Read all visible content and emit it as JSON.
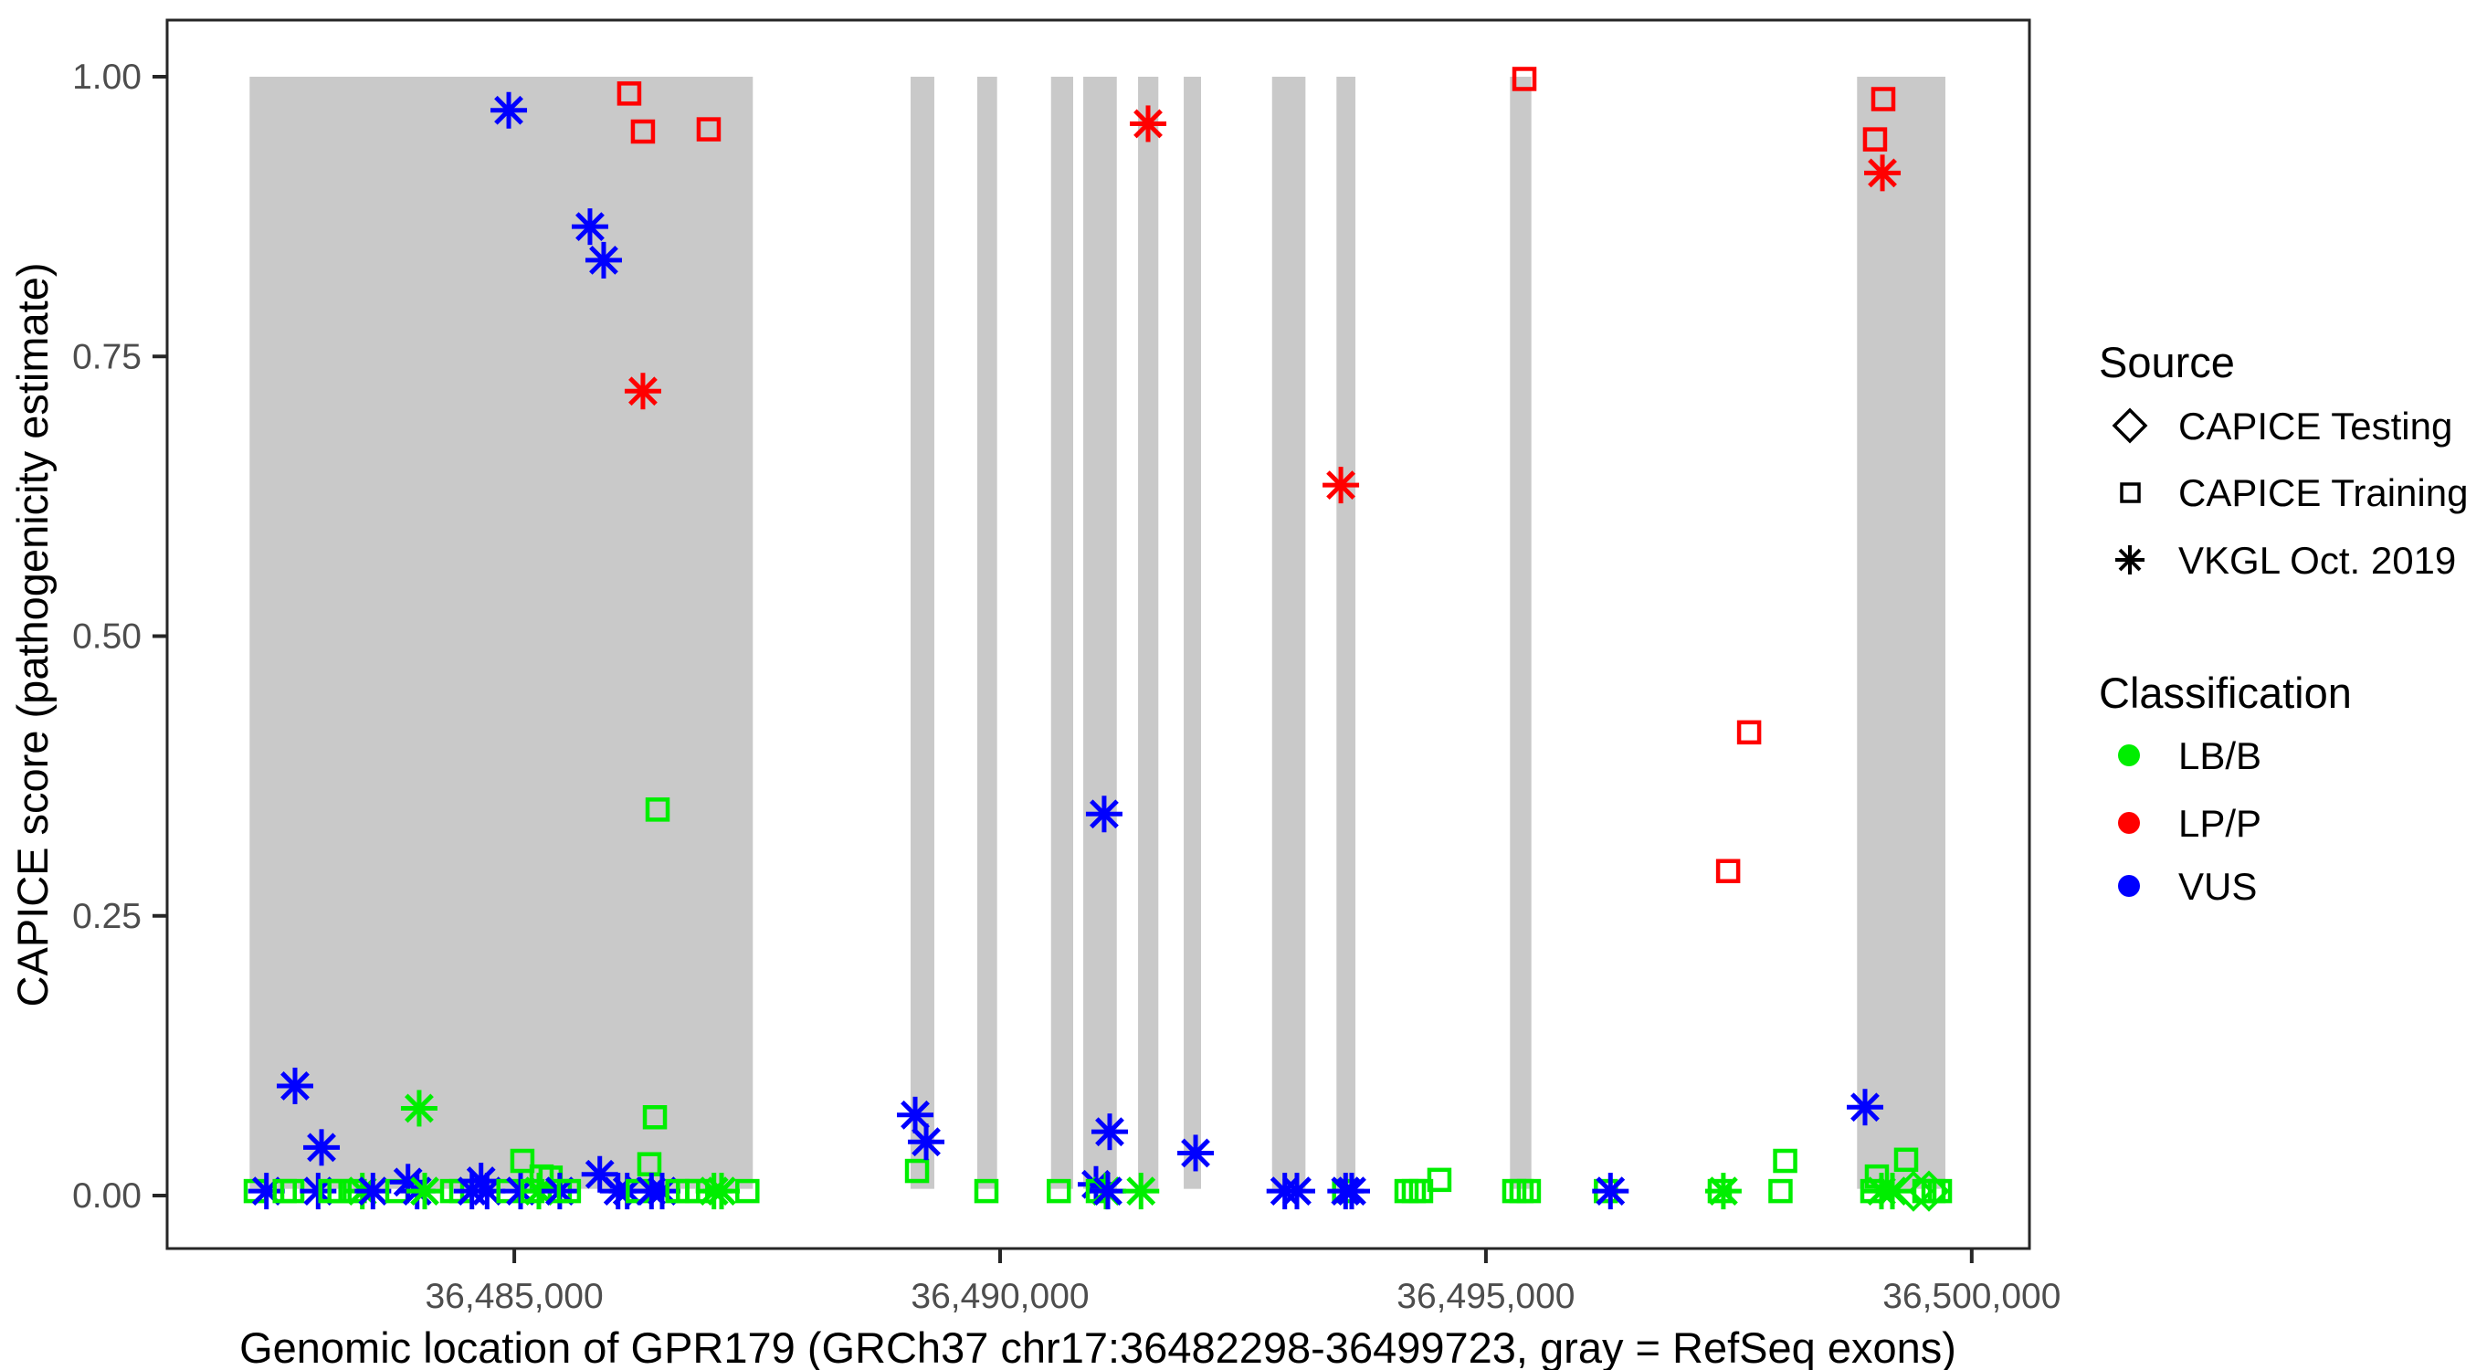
{
  "figure": {
    "x_axis": {
      "title": "Genomic location of GPR179 (GRCh37 chr17:36482298-36499723, gray = RefSeq exons)",
      "ticks": [
        {
          "value": 36485000,
          "label": "36,485,000"
        },
        {
          "value": 36490000,
          "label": "36,490,000"
        },
        {
          "value": 36495000,
          "label": "36,495,000"
        },
        {
          "value": 36500000,
          "label": "36,500,000"
        }
      ]
    },
    "y_axis": {
      "title": "CAPICE score (pathogenicity estimate)",
      "ticks": [
        {
          "value": 1.0,
          "label": "1.00"
        },
        {
          "value": 0.75,
          "label": "0.75"
        },
        {
          "value": 0.5,
          "label": "0.50"
        },
        {
          "value": 0.25,
          "label": "0.25"
        },
        {
          "value": 0.0,
          "label": "0.00"
        }
      ]
    }
  },
  "legend": {
    "source": {
      "title": "Source",
      "items": [
        {
          "label": "CAPICE Testing",
          "shape": "diamond",
          "key": "testing"
        },
        {
          "label": "CAPICE Training",
          "shape": "square",
          "key": "training"
        },
        {
          "label": "VKGL Oct. 2019",
          "shape": "asterisk",
          "key": "vkgl"
        }
      ]
    },
    "classification": {
      "title": "Classification",
      "items": [
        {
          "label": "LB/B",
          "color": "#00EE00"
        },
        {
          "label": "LP/P",
          "color": "#FF0000"
        },
        {
          "label": "VUS",
          "color": "#0000FF"
        }
      ]
    }
  },
  "colors": {
    "LB/B": "#00EE00",
    "LP/P": "#FF0000",
    "VUS": "#0000FF",
    "exon_band": "#C9C9C9",
    "tick_text": "#4D4D4D",
    "axis_line": "#262626",
    "background": "#FFFFFF"
  },
  "chart_data": {
    "type": "scatter",
    "title": "",
    "xlabel": "Genomic location of GPR179 (GRCh37 chr17:36482298-36499723, gray = RefSeq exons)",
    "ylabel": "CAPICE score (pathogenicity estimate)",
    "x_domain": [
      36481427,
      36500594
    ],
    "y_domain": [
      0,
      1
    ],
    "grid": false,
    "legend_position": "right",
    "shape_map": {
      "testing": "diamond",
      "training": "square",
      "vkgl": "asterisk"
    },
    "exon_band_y_span": [
      0.006,
      1.0
    ],
    "exons": [
      [
        36482276,
        36487455
      ],
      [
        36489079,
        36489323
      ],
      [
        36489765,
        36489969
      ],
      [
        36490524,
        36490752
      ],
      [
        36490856,
        36491201
      ],
      [
        36491420,
        36491629
      ],
      [
        36491890,
        36492068
      ],
      [
        36492799,
        36493143
      ],
      [
        36493462,
        36493657
      ],
      [
        36495248,
        36495468
      ],
      [
        36498820,
        36499729
      ]
    ],
    "point_format": [
      "genomic_position",
      "capice_score",
      "classification",
      "source"
    ],
    "points": [
      [
        36482339,
        0.004,
        "LB/B",
        "training"
      ],
      [
        36482449,
        0.004,
        "VUS",
        "vkgl"
      ],
      [
        36482637,
        0.004,
        "LB/B",
        "training"
      ],
      [
        36482715,
        0.004,
        "LB/B",
        "training"
      ],
      [
        36482743,
        0.098,
        "VUS",
        "vkgl"
      ],
      [
        36482981,
        0.004,
        "VUS",
        "vkgl"
      ],
      [
        36483016,
        0.043,
        "VUS",
        "vkgl"
      ],
      [
        36483107,
        0.004,
        "LB/B",
        "training"
      ],
      [
        36483201,
        0.004,
        "LB/B",
        "training"
      ],
      [
        36483357,
        0.004,
        "LB/B",
        "training"
      ],
      [
        36483436,
        0.004,
        "LB/B",
        "vkgl"
      ],
      [
        36483545,
        0.004,
        "VUS",
        "vkgl"
      ],
      [
        36483796,
        0.004,
        "LB/B",
        "training"
      ],
      [
        36483906,
        0.012,
        "VUS",
        "vkgl"
      ],
      [
        36484000,
        0.004,
        "VUS",
        "vkgl"
      ],
      [
        36484021,
        0.078,
        "LB/B",
        "vkgl"
      ],
      [
        36484078,
        0.004,
        "LB/B",
        "vkgl"
      ],
      [
        36484360,
        0.004,
        "LB/B",
        "training"
      ],
      [
        36484454,
        0.004,
        "LB/B",
        "training"
      ],
      [
        36484564,
        0.004,
        "VUS",
        "vkgl"
      ],
      [
        36484658,
        0.013,
        "VUS",
        "vkgl"
      ],
      [
        36484720,
        0.004,
        "VUS",
        "vkgl"
      ],
      [
        36484940,
        0.004,
        "LB/B",
        "training"
      ],
      [
        36484943,
        0.97,
        "VUS",
        "vkgl"
      ],
      [
        36485065,
        0.004,
        "VUS",
        "vkgl"
      ],
      [
        36485083,
        0.031,
        "LB/B",
        "training"
      ],
      [
        36485187,
        0.004,
        "LB/B",
        "training"
      ],
      [
        36485253,
        0.004,
        "LB/B",
        "vkgl"
      ],
      [
        36485281,
        0.017,
        "LB/B",
        "training"
      ],
      [
        36485374,
        0.016,
        "LB/B",
        "training"
      ],
      [
        36485468,
        0.004,
        "LB/B",
        "training"
      ],
      [
        36485468,
        0.004,
        "VUS",
        "vkgl"
      ],
      [
        36485562,
        0.004,
        "LB/B",
        "training"
      ],
      [
        36485779,
        0.866,
        "VUS",
        "vkgl"
      ],
      [
        36485880,
        0.019,
        "VUS",
        "vkgl"
      ],
      [
        36485920,
        0.836,
        "VUS",
        "vkgl"
      ],
      [
        36486068,
        0.004,
        "VUS",
        "vkgl"
      ],
      [
        36486162,
        0.004,
        "VUS",
        "vkgl"
      ],
      [
        36486183,
        0.985,
        "LP/P",
        "training"
      ],
      [
        36486271,
        0.004,
        "LB/B",
        "training"
      ],
      [
        36486324,
        0.951,
        "LP/P",
        "training"
      ],
      [
        36486324,
        0.719,
        "LP/P",
        "vkgl"
      ],
      [
        36486390,
        0.028,
        "LB/B",
        "training"
      ],
      [
        36486412,
        0.004,
        "VUS",
        "vkgl"
      ],
      [
        36486447,
        0.07,
        "LB/B",
        "training"
      ],
      [
        36486475,
        0.345,
        "LB/B",
        "training"
      ],
      [
        36486522,
        0.004,
        "VUS",
        "vkgl"
      ],
      [
        36486679,
        0.004,
        "LB/B",
        "training"
      ],
      [
        36486788,
        0.004,
        "LB/B",
        "training"
      ],
      [
        36486882,
        0.004,
        "LB/B",
        "training"
      ],
      [
        36487001,
        0.953,
        "LP/P",
        "training"
      ],
      [
        36487055,
        0.004,
        "LB/B",
        "vkgl"
      ],
      [
        36487133,
        0.004,
        "LB/B",
        "vkgl"
      ],
      [
        36487399,
        0.004,
        "LB/B",
        "training"
      ],
      [
        36489126,
        0.072,
        "VUS",
        "vkgl"
      ],
      [
        36489145,
        0.022,
        "LB/B",
        "training"
      ],
      [
        36489239,
        0.048,
        "VUS",
        "vkgl"
      ],
      [
        36489859,
        0.004,
        "LB/B",
        "training"
      ],
      [
        36490604,
        0.004,
        "LB/B",
        "training"
      ],
      [
        36490987,
        0.01,
        "VUS",
        "vkgl"
      ],
      [
        36491006,
        0.004,
        "LB/B",
        "training"
      ],
      [
        36491071,
        0.341,
        "VUS",
        "vkgl"
      ],
      [
        36491090,
        0.004,
        "LB/B",
        "vkgl"
      ],
      [
        36491109,
        0.004,
        "VUS",
        "vkgl"
      ],
      [
        36491128,
        0.057,
        "VUS",
        "vkgl"
      ],
      [
        36491450,
        0.004,
        "LB/B",
        "vkgl"
      ],
      [
        36491523,
        0.958,
        "LP/P",
        "vkgl"
      ],
      [
        36492012,
        0.038,
        "VUS",
        "vkgl"
      ],
      [
        36492930,
        0.004,
        "VUS",
        "vkgl"
      ],
      [
        36493055,
        0.004,
        "VUS",
        "vkgl"
      ],
      [
        36493507,
        0.635,
        "LP/P",
        "vkgl"
      ],
      [
        36493541,
        0.004,
        "LB/B",
        "training"
      ],
      [
        36493556,
        0.004,
        "VUS",
        "vkgl"
      ],
      [
        36493619,
        0.004,
        "VUS",
        "vkgl"
      ],
      [
        36494183,
        0.004,
        "LB/B",
        "training"
      ],
      [
        36494258,
        0.004,
        "LB/B",
        "training"
      ],
      [
        36494333,
        0.004,
        "LB/B",
        "training"
      ],
      [
        36494521,
        0.014,
        "LB/B",
        "training"
      ],
      [
        36495292,
        0.004,
        "LB/B",
        "training"
      ],
      [
        36495367,
        0.004,
        "LB/B",
        "training"
      ],
      [
        36495396,
        0.998,
        "LP/P",
        "training"
      ],
      [
        36495442,
        0.004,
        "LB/B",
        "training"
      ],
      [
        36496235,
        0.004,
        "LB/B",
        "training"
      ],
      [
        36496282,
        0.004,
        "VUS",
        "vkgl"
      ],
      [
        36497407,
        0.004,
        "LB/B",
        "training"
      ],
      [
        36497444,
        0.004,
        "LB/B",
        "vkgl"
      ],
      [
        36497493,
        0.29,
        "LP/P",
        "training"
      ],
      [
        36497709,
        0.414,
        "LP/P",
        "training"
      ],
      [
        36498032,
        0.004,
        "LB/B",
        "training"
      ],
      [
        36498080,
        0.031,
        "LB/B",
        "training"
      ],
      [
        36498902,
        0.079,
        "VUS",
        "vkgl"
      ],
      [
        36498977,
        0.004,
        "LB/B",
        "training"
      ],
      [
        36499005,
        0.944,
        "LP/P",
        "training"
      ],
      [
        36499024,
        0.017,
        "LB/B",
        "training"
      ],
      [
        36499071,
        0.004,
        "LB/B",
        "vkgl"
      ],
      [
        36499081,
        0.914,
        "LP/P",
        "vkgl"
      ],
      [
        36499090,
        0.98,
        "LP/P",
        "training"
      ],
      [
        36499184,
        0.004,
        "LB/B",
        "vkgl"
      ],
      [
        36499325,
        0.032,
        "LB/B",
        "training"
      ],
      [
        36499400,
        0.004,
        "LB/B",
        "testing"
      ],
      [
        36499513,
        0.004,
        "LB/B",
        "training"
      ],
      [
        36499560,
        0.004,
        "LB/B",
        "testing"
      ],
      [
        36499607,
        0.004,
        "LB/B",
        "training"
      ],
      [
        36499673,
        0.004,
        "LB/B",
        "training"
      ]
    ]
  }
}
